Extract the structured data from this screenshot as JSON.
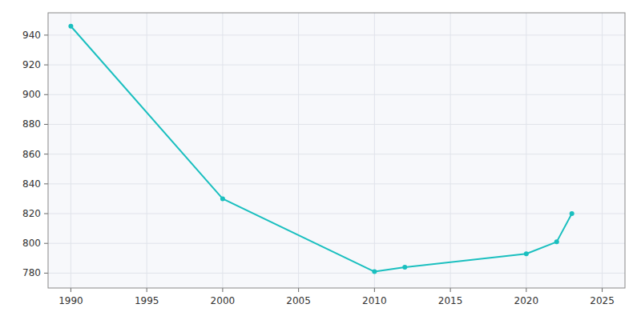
{
  "chart_data": {
    "type": "line",
    "x": [
      1990,
      2000,
      2010,
      2012,
      2020,
      2022,
      2023
    ],
    "values": [
      946,
      830,
      781,
      784,
      793,
      801,
      820
    ],
    "color": "#1abfbf",
    "marker": "circle",
    "xlim": [
      1988.5,
      2026.5
    ],
    "ylim": [
      770,
      955
    ],
    "xticks": [
      1990,
      1995,
      2000,
      2005,
      2010,
      2015,
      2020,
      2025
    ],
    "yticks": [
      780,
      800,
      820,
      840,
      860,
      880,
      900,
      920,
      940
    ],
    "grid": true
  }
}
